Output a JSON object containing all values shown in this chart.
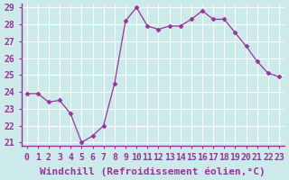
{
  "x": [
    0,
    1,
    2,
    3,
    4,
    5,
    6,
    7,
    8,
    9,
    10,
    11,
    12,
    13,
    14,
    15,
    16,
    17,
    18,
    19,
    20,
    21,
    22,
    23
  ],
  "y": [
    23.9,
    23.9,
    23.4,
    23.5,
    22.7,
    21.0,
    21.4,
    22.0,
    24.5,
    28.2,
    29.0,
    27.9,
    27.7,
    27.9,
    27.9,
    28.3,
    28.8,
    28.3,
    28.3,
    27.5,
    26.7,
    25.8,
    25.1,
    24.9
  ],
  "line_color": "#993399",
  "marker": "D",
  "marker_size": 2.5,
  "bg_color": "#cceaea",
  "grid_color": "#ffffff",
  "xlabel": "Windchill (Refroidissement éolien,°C)",
  "xlabel_fontsize": 8,
  "tick_fontsize": 7,
  "ylim": [
    21,
    29
  ],
  "xlim": [
    -0.5,
    23.5
  ],
  "yticks": [
    21,
    22,
    23,
    24,
    25,
    26,
    27,
    28,
    29
  ],
  "xticks": [
    0,
    1,
    2,
    3,
    4,
    5,
    6,
    7,
    8,
    9,
    10,
    11,
    12,
    13,
    14,
    15,
    16,
    17,
    18,
    19,
    20,
    21,
    22,
    23
  ],
  "spine_color": "#993399",
  "tick_color": "#993399",
  "label_color": "#993399"
}
